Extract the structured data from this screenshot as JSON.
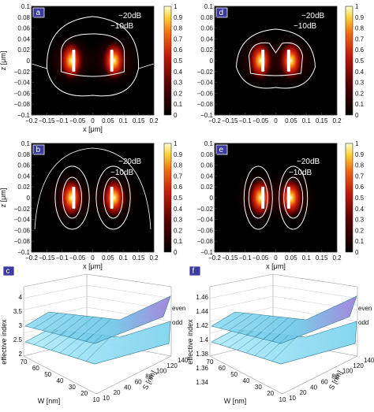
{
  "figure": {
    "panels": [
      {
        "id": "a",
        "label": "a",
        "type": "heatmap",
        "xlabel": "x [μm]",
        "ylabel": "z [μm]",
        "xticks": [
          "−0.2",
          "−0.15",
          "−0.1",
          "−0.05",
          "0",
          "0.05",
          "0.1",
          "0.15",
          "0.2"
        ],
        "yticks": [
          "0.1",
          "0.08",
          "0.06",
          "0.04",
          "0.02",
          "0",
          "−0.02",
          "−0.04",
          "−0.06",
          "−0.08",
          "−0.1"
        ],
        "contours": [
          "−20dB",
          "−10dB"
        ],
        "colorbar": [
          "1",
          "0.9",
          "0.8",
          "0.7",
          "0.6",
          "0.5",
          "0.4",
          "0.3",
          "0.2",
          "0.1",
          "0"
        ]
      },
      {
        "id": "b",
        "label": "b",
        "type": "heatmap",
        "xlabel": "x [μm]",
        "ylabel": "z [μm]",
        "xticks": [
          "−0.2",
          "−0.15",
          "−0.1",
          "−0.05",
          "0",
          "0.05",
          "0.1",
          "0.15",
          "0.2"
        ],
        "yticks": [
          "0.1",
          "0.08",
          "0.06",
          "0.04",
          "0.02",
          "0",
          "−0.02",
          "−0.04",
          "−0.06",
          "−0.08",
          "−0.1"
        ],
        "contours": [
          "−20dB",
          "−10dB"
        ],
        "colorbar": [
          "1",
          "0.9",
          "0.8",
          "0.7",
          "0.6",
          "0.5",
          "0.4",
          "0.3",
          "0.2",
          "0.1",
          "0"
        ]
      },
      {
        "id": "d",
        "label": "d",
        "type": "heatmap",
        "xlabel": "",
        "ylabel": "",
        "xticks": [
          "−0.2",
          "−0.15",
          "−0.1",
          "−0.05",
          "0",
          "0.05",
          "0.1",
          "0.15",
          "0.2"
        ],
        "yticks": [
          "0.1",
          "0.08",
          "0.06",
          "0.04",
          "0.02",
          "0",
          "−0.02",
          "−0.04",
          "−0.06",
          "−0.08",
          "−0.1"
        ],
        "contours": [
          "−20dB",
          "−10dB"
        ],
        "colorbar": [
          "1",
          "0.9",
          "0.8",
          "0.7",
          "0.6",
          "0.5",
          "0.4",
          "0.3",
          "0.2",
          "0.1",
          "0"
        ]
      },
      {
        "id": "e",
        "label": "e",
        "type": "heatmap",
        "xlabel": "x [μm]",
        "ylabel": "",
        "xticks": [
          "−0.2",
          "−0.15",
          "−0.1",
          "−0.05",
          "0",
          "0.05",
          "0.1",
          "0.15",
          "0.2"
        ],
        "yticks": [
          "0.1",
          "0.08",
          "0.06",
          "0.04",
          "0.02",
          "0",
          "−0.02",
          "−0.04",
          "−0.06",
          "−0.08",
          "−0.1"
        ],
        "contours": [
          "−20dB",
          "−10dB"
        ],
        "colorbar": [
          "1",
          "0.9",
          "0.8",
          "0.7",
          "0.6",
          "0.5",
          "0.4",
          "0.3",
          "0.2",
          "0.1",
          "0"
        ]
      }
    ],
    "surfaces": [
      {
        "id": "c",
        "label": "c",
        "zlabel": "effective index",
        "wlabel": "W [nm]",
        "slabel": "S [nm]",
        "zticks": [
          "4",
          "3.5",
          "3",
          "2.5",
          "2"
        ],
        "wticks": [
          "70",
          "60",
          "50",
          "40",
          "30",
          "20",
          "10"
        ],
        "sticks": [
          "140",
          "120",
          "100",
          "80",
          "60",
          "40",
          "20",
          "10"
        ],
        "series": [
          "even",
          "odd"
        ]
      },
      {
        "id": "f",
        "label": "f",
        "zlabel": "effective index",
        "wlabel": "W [nm]",
        "slabel": "S [nm]",
        "zticks": [
          "1.46",
          "1.44",
          "1.42",
          "1.4",
          "1.38",
          "1.36",
          "1.34"
        ],
        "wticks": [
          "70",
          "60",
          "50",
          "40",
          "30",
          "20",
          "10"
        ],
        "sticks": [
          "140",
          "120",
          "100",
          "80",
          "60",
          "40",
          "20",
          "10"
        ],
        "series": [
          "even",
          "odd"
        ]
      }
    ]
  },
  "chart_data": [
    {
      "type": "heatmap",
      "panel": "a",
      "x_range": [
        -0.2,
        0.2
      ],
      "y_range": [
        -0.1,
        0.1
      ],
      "color_range": [
        0,
        1
      ],
      "contour_labels": [
        "−20dB",
        "−10dB"
      ],
      "hotspots_x": [
        -0.07,
        0.07
      ],
      "hotspots_z": [
        0,
        0
      ]
    },
    {
      "type": "heatmap",
      "panel": "b",
      "x_range": [
        -0.2,
        0.2
      ],
      "y_range": [
        -0.1,
        0.1
      ],
      "color_range": [
        0,
        1
      ],
      "contour_labels": [
        "−20dB",
        "−10dB"
      ],
      "hotspots_x": [
        -0.07,
        0.07
      ],
      "hotspots_z": [
        0,
        0
      ]
    },
    {
      "type": "heatmap",
      "panel": "d",
      "x_range": [
        -0.2,
        0.2
      ],
      "y_range": [
        -0.1,
        0.1
      ],
      "color_range": [
        0,
        1
      ],
      "contour_labels": [
        "−20dB",
        "−10dB"
      ],
      "hotspots_x": [
        -0.05,
        0.05
      ],
      "hotspots_z": [
        0,
        0
      ]
    },
    {
      "type": "heatmap",
      "panel": "e",
      "x_range": [
        -0.2,
        0.2
      ],
      "y_range": [
        -0.1,
        0.1
      ],
      "color_range": [
        0,
        1
      ],
      "contour_labels": [
        "−20dB",
        "−10dB"
      ],
      "hotspots_x": [
        -0.05,
        0.05
      ],
      "hotspots_z": [
        0,
        0
      ]
    },
    {
      "type": "surface",
      "panel": "c",
      "z_range": [
        2,
        4
      ],
      "series": [
        "even",
        "odd"
      ]
    },
    {
      "type": "surface",
      "panel": "f",
      "z_range": [
        1.34,
        1.46
      ],
      "series": [
        "even",
        "odd"
      ]
    }
  ]
}
